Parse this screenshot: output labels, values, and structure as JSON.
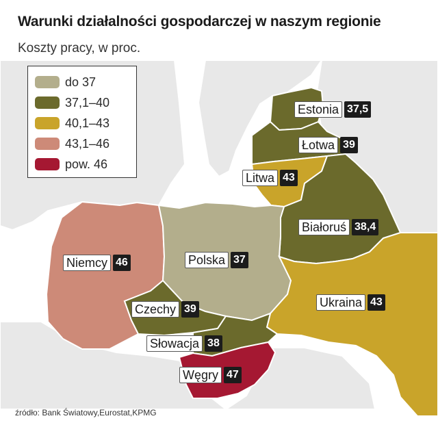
{
  "title": "Warunki działalności gospodarczej w naszym regionie",
  "subtitle": "Koszty pracy, w proc.",
  "legend": [
    {
      "label": "do 37",
      "color": "#b3ae8c"
    },
    {
      "label": "37,1–40",
      "color": "#6b6a2c"
    },
    {
      "label": "40,1–43",
      "color": "#c9a42a"
    },
    {
      "label": "43,1–46",
      "color": "#cd8a78"
    },
    {
      "label": "pow. 46",
      "color": "#a51832"
    }
  ],
  "countries": [
    {
      "id": "estonia",
      "name": "Estonia",
      "value": "37,5",
      "color": "#6b6a2c"
    },
    {
      "id": "lotwa",
      "name": "Łotwa",
      "value": "39",
      "color": "#6b6a2c"
    },
    {
      "id": "litwa",
      "name": "Litwa",
      "value": "43",
      "color": "#c9a42a"
    },
    {
      "id": "bialorus",
      "name": "Białoruś",
      "value": "38,4",
      "color": "#6b6a2c"
    },
    {
      "id": "niemcy",
      "name": "Niemcy",
      "value": "46",
      "color": "#cd8a78"
    },
    {
      "id": "polska",
      "name": "Polska",
      "value": "37",
      "color": "#b3ae8c"
    },
    {
      "id": "ukraina",
      "name": "Ukraina",
      "value": "43",
      "color": "#c9a42a"
    },
    {
      "id": "czechy",
      "name": "Czechy",
      "value": "39",
      "color": "#6b6a2c"
    },
    {
      "id": "slowacja",
      "name": "Słowacja",
      "value": "38",
      "color": "#6b6a2c"
    },
    {
      "id": "wegry",
      "name": "Węgry",
      "value": "47",
      "color": "#a51832"
    }
  ],
  "source": "źródło: Bank Światowy,Eurostat,KPMG"
}
